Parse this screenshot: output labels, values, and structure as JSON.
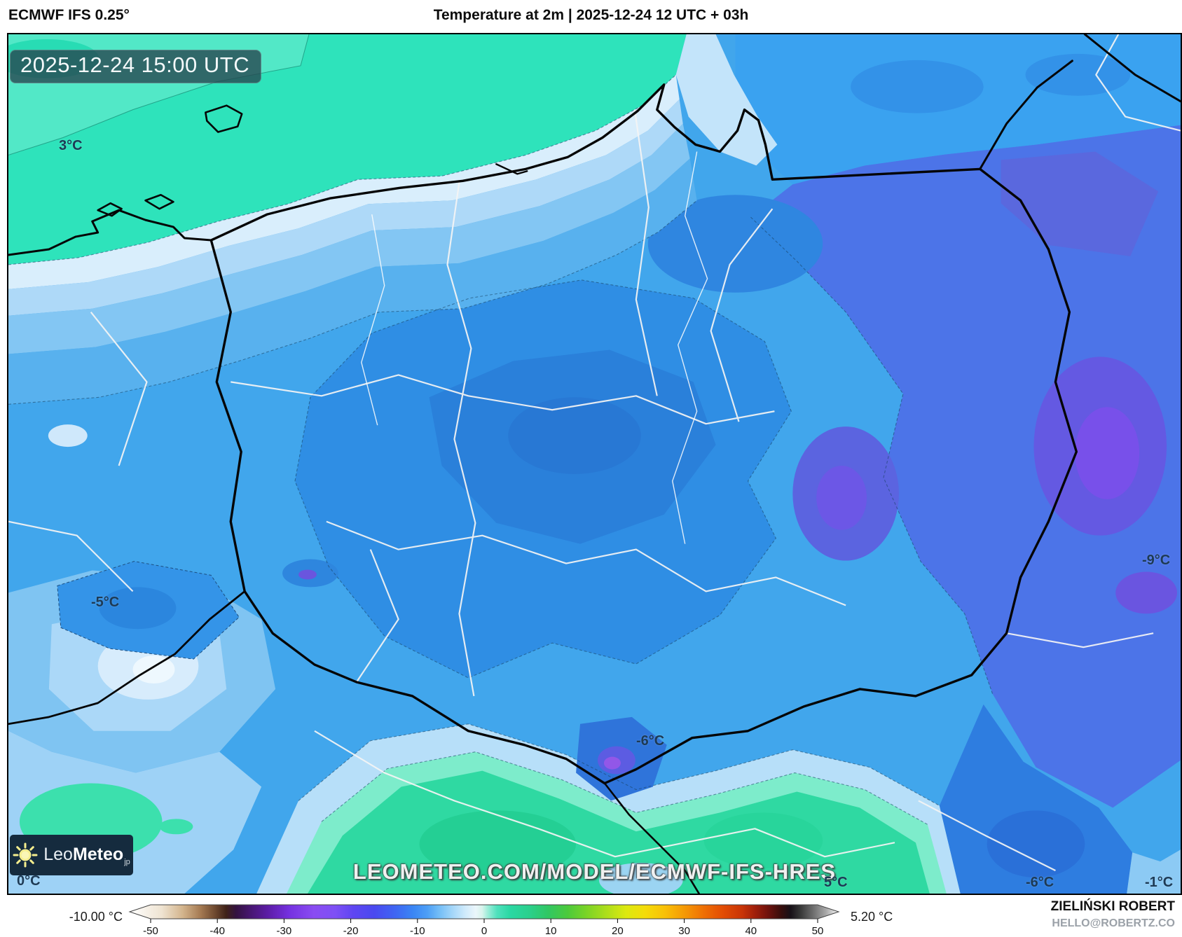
{
  "header": {
    "model_label": "ECMWF IFS 0.25°",
    "title": "Temperature at 2m | 2025-12-24 12 UTC + 03h"
  },
  "map": {
    "timestamp": "2025-12-24 15:00 UTC",
    "watermark": "LEOMETEO.COM/MODEL/ECMWF-IFS-HRES",
    "labels": [
      {
        "text": "3°C"
      },
      {
        "text": "-5°C"
      },
      {
        "text": "-9°C"
      },
      {
        "text": "-6°C"
      },
      {
        "text": "0°C"
      },
      {
        "text": "5°C"
      },
      {
        "text": "-6°C"
      },
      {
        "text": "-1°C"
      }
    ]
  },
  "logo": {
    "prefix": "Leo",
    "suffix": "Meteo",
    "domain": "jp"
  },
  "colorbar": {
    "min_label": "-10.00 °C",
    "max_label": "5.20 °C",
    "ticks": [
      "-50",
      "-40",
      "-30",
      "-20",
      "-10",
      "0",
      "10",
      "20",
      "30",
      "40",
      "50"
    ],
    "stops": [
      [
        0.0,
        "#ffffff"
      ],
      [
        0.045,
        "#efe4d2"
      ],
      [
        0.075,
        "#d3b48c"
      ],
      [
        0.1,
        "#a57a52"
      ],
      [
        0.12,
        "#6f4a30"
      ],
      [
        0.136,
        "#3f2218"
      ],
      [
        0.15,
        "#331240"
      ],
      [
        0.17,
        "#471670"
      ],
      [
        0.195,
        "#5c1ca6"
      ],
      [
        0.225,
        "#7531e0"
      ],
      [
        0.26,
        "#8a4cf2"
      ],
      [
        0.29,
        "#7e50f5"
      ],
      [
        0.315,
        "#5f46f2"
      ],
      [
        0.345,
        "#4a49f0"
      ],
      [
        0.375,
        "#3f66f3"
      ],
      [
        0.4,
        "#3a86f5"
      ],
      [
        0.42,
        "#4d9ff6"
      ],
      [
        0.437,
        "#74bef7"
      ],
      [
        0.455,
        "#a3d6f9"
      ],
      [
        0.473,
        "#cfeafb"
      ],
      [
        0.488,
        "#ebf6fb"
      ],
      [
        0.497,
        "#d9f4ed"
      ],
      [
        0.505,
        "#9fedd9"
      ],
      [
        0.518,
        "#50e1bd"
      ],
      [
        0.536,
        "#2bd8a4"
      ],
      [
        0.564,
        "#2bd08c"
      ],
      [
        0.59,
        "#31c763"
      ],
      [
        0.618,
        "#4cca3b"
      ],
      [
        0.645,
        "#7cd426"
      ],
      [
        0.673,
        "#aede1b"
      ],
      [
        0.7,
        "#dce90f"
      ],
      [
        0.727,
        "#f4dc09"
      ],
      [
        0.755,
        "#f9c007"
      ],
      [
        0.782,
        "#f59a05"
      ],
      [
        0.809,
        "#ef7004"
      ],
      [
        0.836,
        "#e34d04"
      ],
      [
        0.864,
        "#c83407"
      ],
      [
        0.882,
        "#a01f0b"
      ],
      [
        0.9,
        "#70120d"
      ],
      [
        0.918,
        "#3a0e0c"
      ],
      [
        0.932,
        "#171017"
      ],
      [
        0.945,
        "#343434"
      ],
      [
        0.964,
        "#6e6e6e"
      ],
      [
        0.982,
        "#a8a8a8"
      ],
      [
        0.992,
        "#d6d6d6"
      ],
      [
        1.0,
        "#ffffff"
      ]
    ]
  },
  "credits": {
    "name": "ZIELIŃSKI ROBERT",
    "email": "HELLO@ROBERTZ.CO"
  }
}
